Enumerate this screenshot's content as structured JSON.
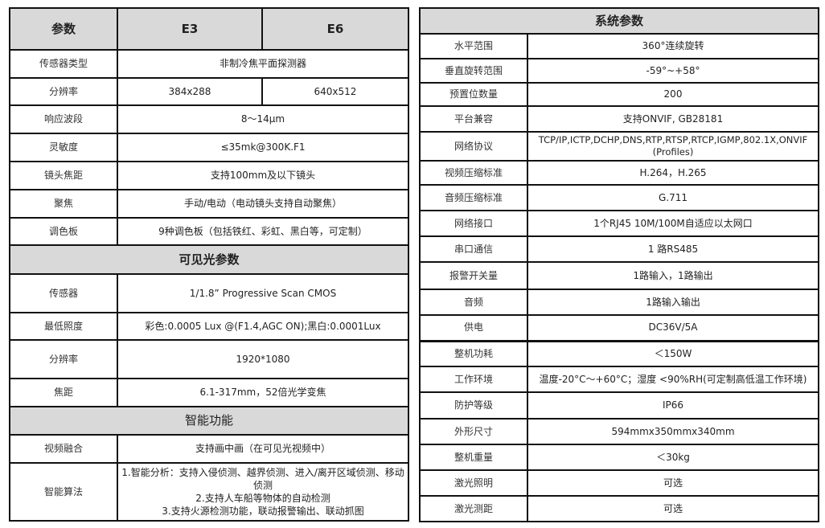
{
  "left_table": {
    "header": [
      "参数",
      "E3",
      "E6"
    ],
    "thermal_rows": [
      {
        "label": "传感器类型",
        "value": "非制冷焦平面探测器"
      },
      {
        "label": "分辨率",
        "e3": "384x288",
        "e6": "640x512"
      },
      {
        "label": "响应波段",
        "value": "8～14μm"
      },
      {
        "label": "灵敏度",
        "value": "≤35mk@300K.F1"
      },
      {
        "label": "镜头焦距",
        "value": "支持100mm及以下镜头"
      },
      {
        "label": "聚焦",
        "value": "手动/电动（电动镜头支持自动聚焦）"
      },
      {
        "label": "调色板",
        "value": "9种调色板（包括铁红、彩虹、黑白等，可定制）"
      }
    ],
    "visible_section_title": "可见光参数",
    "visible_rows": [
      {
        "label": "传感器",
        "value": "1/1.8” Progressive Scan CMOS"
      },
      {
        "label": "最低照度",
        "value": "彩色:0.0005 Lux @(F1.4,AGC ON);黑白:0.0001Lux"
      },
      {
        "label": "分辨率",
        "value": "1920*1080"
      },
      {
        "label": "焦距",
        "value": "6.1-317mm，52倍光学变焦"
      }
    ],
    "smart_section_title": "智能功能",
    "smart_rows": [
      {
        "label": "视频融合",
        "value": "支持画中画（在可见光视频中）"
      },
      {
        "label": "智能算法",
        "lines": [
          "1.智能分析：支持入侵侦测、越界侦测、进入/离开区域侦测、移动侦测",
          "2.支持人车船等物体的自动检测",
          "3.支持火源检测功能，联动报警输出、联动抓图"
        ]
      }
    ]
  },
  "right_table": {
    "title": "系统参数",
    "rows": [
      {
        "label": "水平范围",
        "value": "360°连续旋转"
      },
      {
        "label": "垂直旋转范围",
        "value": "-59°~+58°"
      },
      {
        "label": "预置位数量",
        "value": "200"
      },
      {
        "label": "平台兼容",
        "value": "支持ONVIF, GB28181"
      },
      {
        "label": "网络协议",
        "value": "TCP/IP,ICTP,DCHP,DNS,RTP,RTSP,RTCP,IGMP,802.1X,ONVIF (Profiles)"
      },
      {
        "label": "视频压缩标准",
        "value": "H.264，H.265"
      },
      {
        "label": "音频压缩标准",
        "value": "G.711"
      },
      {
        "label": "网络接口",
        "value": "1个RJ45 10M/100M自适应以太网口"
      },
      {
        "label": "串口通信",
        "value": "1 路RS485"
      },
      {
        "label": "报警开关量",
        "value": "1路输入，1路输出"
      },
      {
        "label": "音频",
        "value": "1路输入输出"
      },
      {
        "label": "供电",
        "value": "DC36V/5A"
      },
      {
        "label": "整机功耗",
        "value": "＜150W"
      },
      {
        "label": "工作环境",
        "value": "温度-20°C～+60°C；湿度 <90%RH(可定制高低温工作环境)"
      },
      {
        "label": "防护等级",
        "value": "IP66"
      },
      {
        "label": "外形尺寸",
        "value": "594mmx350mmx340mm"
      },
      {
        "label": "整机重量",
        "value": "＜30kg"
      },
      {
        "label": "激光照明",
        "value": "可选"
      },
      {
        "label": "激光测距",
        "value": "可选"
      }
    ]
  }
}
